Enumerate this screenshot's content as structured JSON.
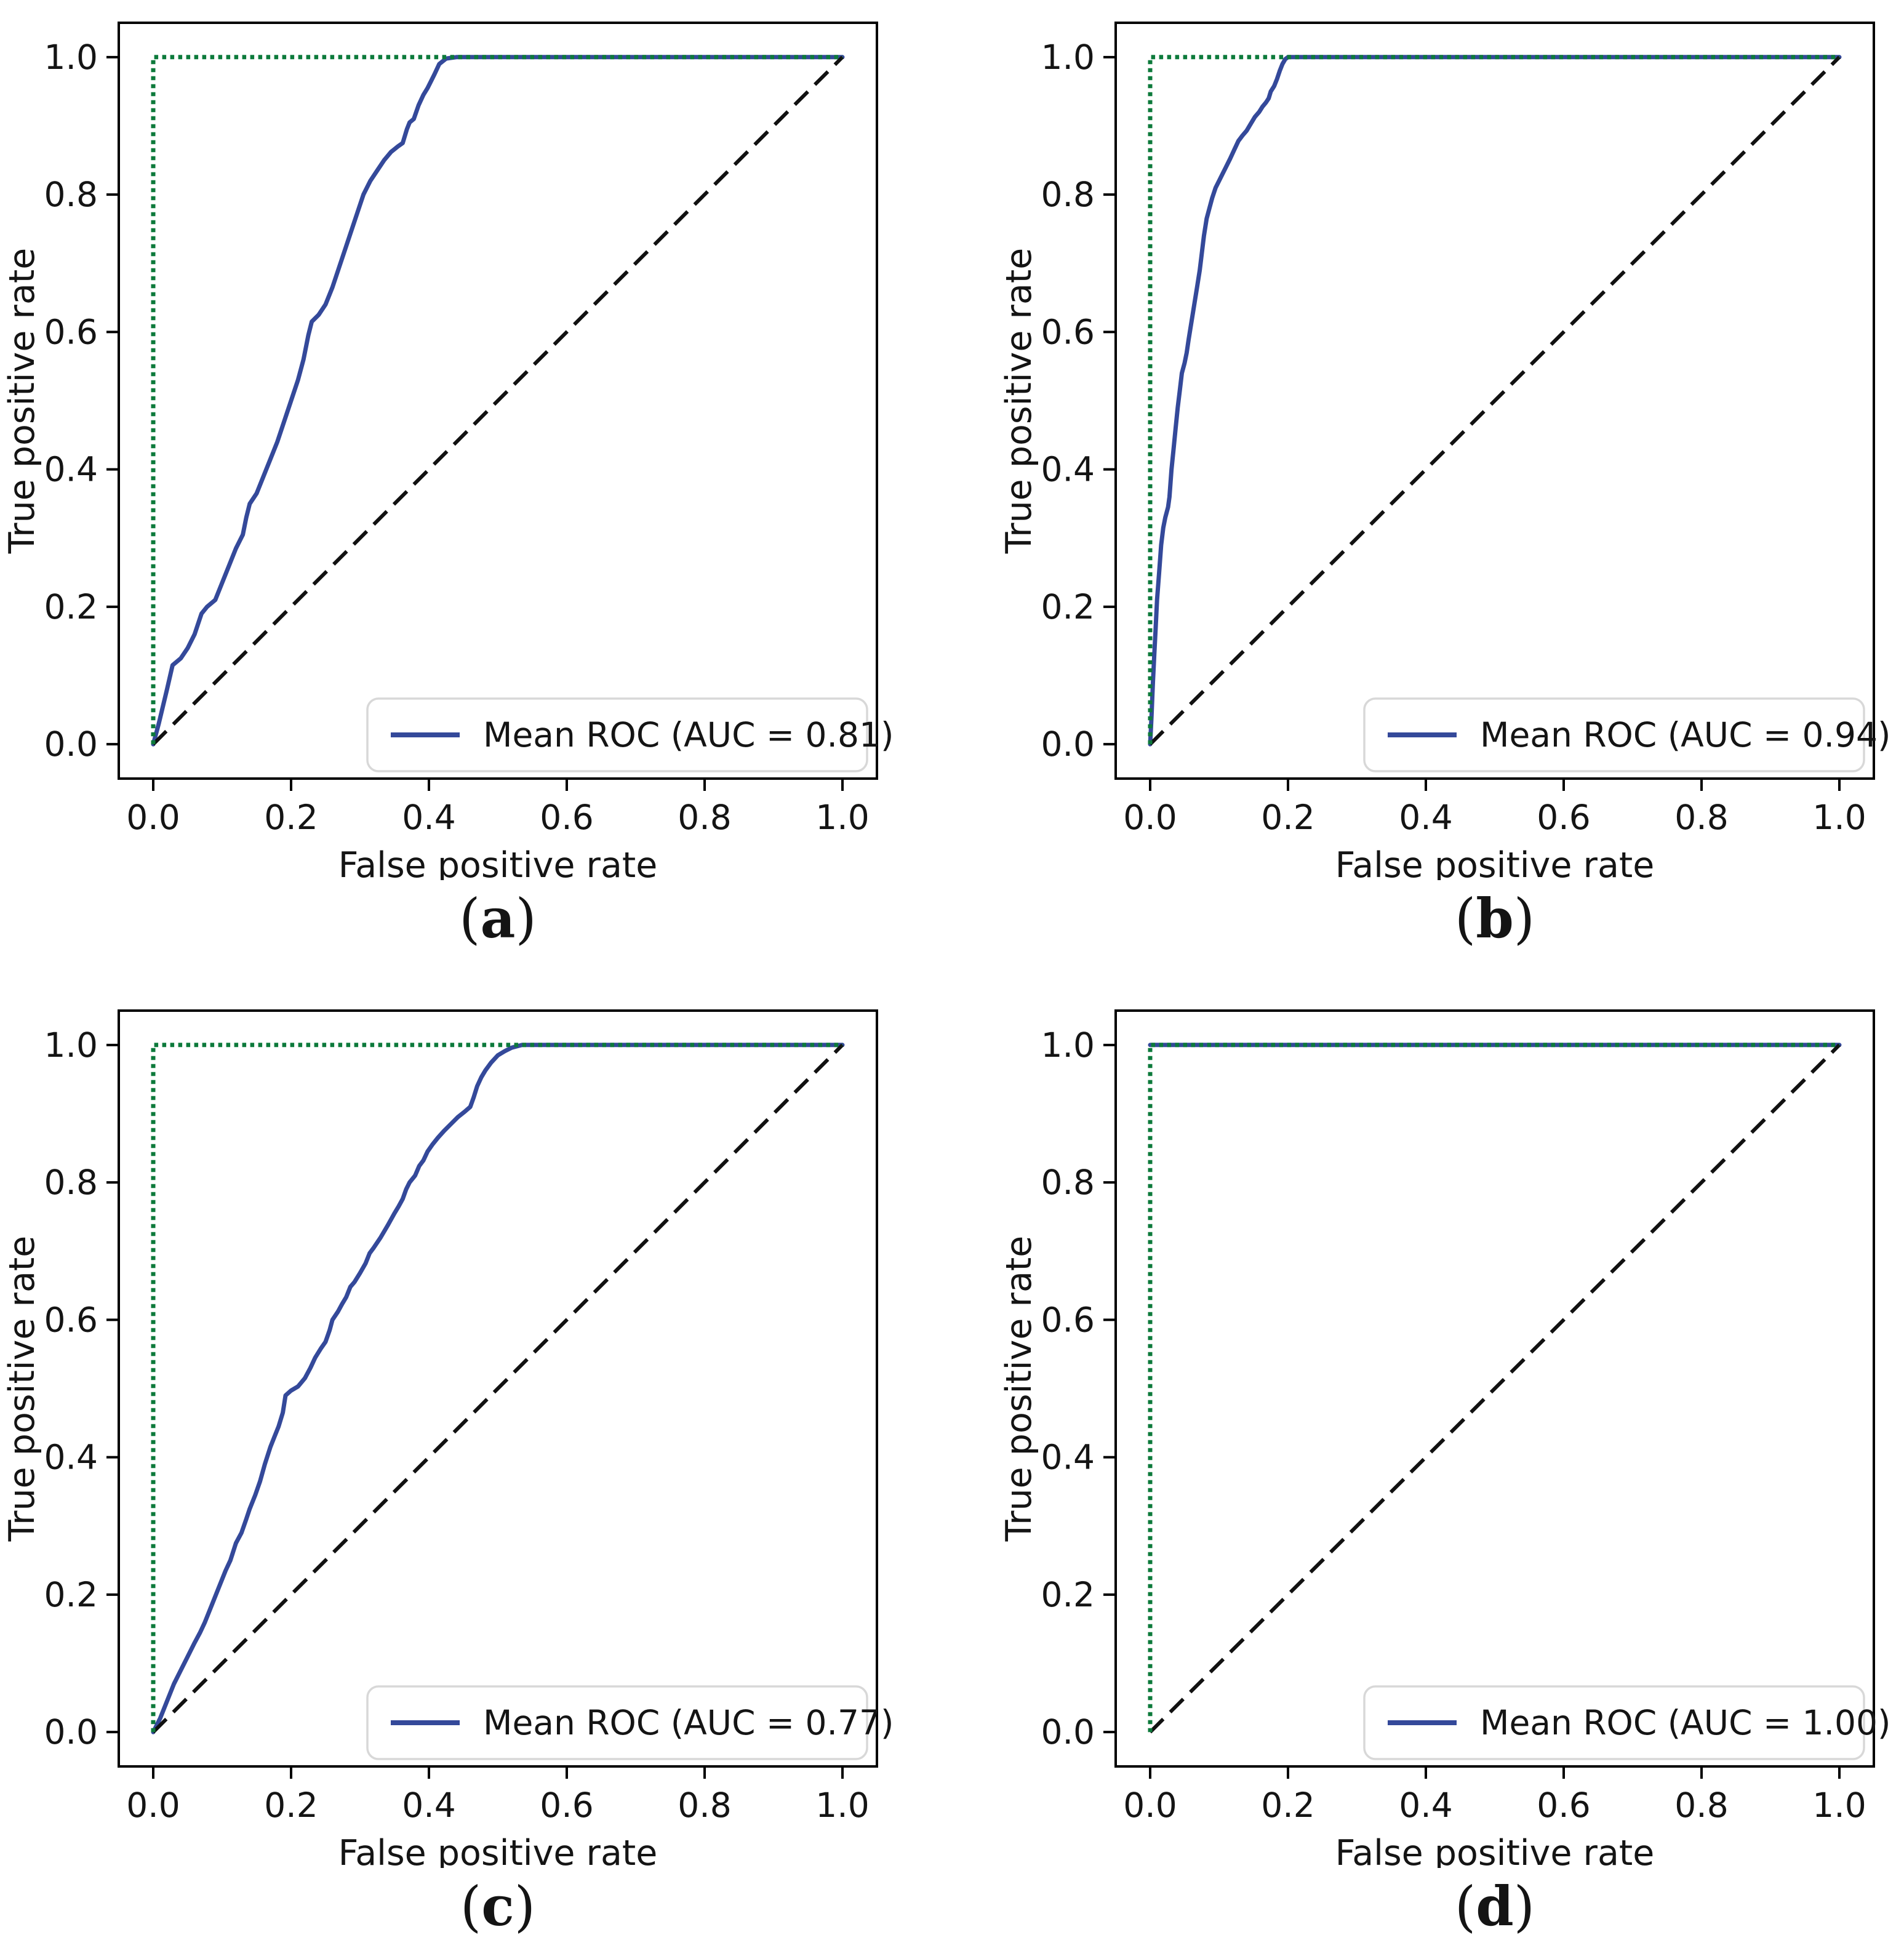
{
  "figure": {
    "background": "#ffffff",
    "text_color": "#141414",
    "spine_color": "#000000",
    "legend_border_color": "#d8d8d8",
    "legend_background": "#ffffff"
  },
  "captions": [
    {
      "pre": "(",
      "label": "a",
      "post": ")"
    },
    {
      "pre": "(",
      "label": "b",
      "post": ")"
    },
    {
      "pre": "(",
      "label": "c",
      "post": ")"
    },
    {
      "pre": "(",
      "label": "d",
      "post": ")"
    }
  ],
  "chart_data": [
    {
      "type": "line",
      "title": "",
      "xlabel": "False positive rate",
      "ylabel": "True positive rate",
      "xlim": [
        -0.05,
        1.05
      ],
      "ylim": [
        -0.05,
        1.05
      ],
      "x_tick_labels": [
        "0.0",
        "0.2",
        "0.4",
        "0.6",
        "0.8",
        "1.0"
      ],
      "y_tick_labels": [
        "0.0",
        "0.2",
        "0.4",
        "0.6",
        "0.8",
        "1.0"
      ],
      "grid": false,
      "legend": {
        "label": "Mean ROC (AUC = 0.81)",
        "position": "lower right"
      },
      "series": [
        {
          "name": "mean-roc",
          "color": "#34499a",
          "style": "solid",
          "points": [
            [
              0,
              0
            ],
            [
              0.008,
              0.03
            ],
            [
              0.02,
              0.08
            ],
            [
              0.028,
              0.115
            ],
            [
              0.04,
              0.125
            ],
            [
              0.05,
              0.14
            ],
            [
              0.06,
              0.16
            ],
            [
              0.07,
              0.19
            ],
            [
              0.078,
              0.2
            ],
            [
              0.09,
              0.21
            ],
            [
              0.1,
              0.235
            ],
            [
              0.11,
              0.26
            ],
            [
              0.12,
              0.285
            ],
            [
              0.13,
              0.305
            ],
            [
              0.135,
              0.33
            ],
            [
              0.14,
              0.35
            ],
            [
              0.15,
              0.365
            ],
            [
              0.16,
              0.39
            ],
            [
              0.17,
              0.415
            ],
            [
              0.18,
              0.44
            ],
            [
              0.19,
              0.47
            ],
            [
              0.2,
              0.5
            ],
            [
              0.21,
              0.53
            ],
            [
              0.218,
              0.56
            ],
            [
              0.225,
              0.595
            ],
            [
              0.23,
              0.615
            ],
            [
              0.24,
              0.625
            ],
            [
              0.25,
              0.64
            ],
            [
              0.26,
              0.665
            ],
            [
              0.27,
              0.695
            ],
            [
              0.28,
              0.725
            ],
            [
              0.29,
              0.755
            ],
            [
              0.3,
              0.785
            ],
            [
              0.305,
              0.8
            ],
            [
              0.315,
              0.82
            ],
            [
              0.325,
              0.835
            ],
            [
              0.335,
              0.85
            ],
            [
              0.345,
              0.862
            ],
            [
              0.355,
              0.87
            ],
            [
              0.362,
              0.875
            ],
            [
              0.368,
              0.895
            ],
            [
              0.372,
              0.905
            ],
            [
              0.378,
              0.91
            ],
            [
              0.385,
              0.93
            ],
            [
              0.392,
              0.945
            ],
            [
              0.398,
              0.955
            ],
            [
              0.403,
              0.965
            ],
            [
              0.408,
              0.975
            ],
            [
              0.415,
              0.99
            ],
            [
              0.425,
              0.998
            ],
            [
              0.44,
              1
            ],
            [
              1,
              1
            ]
          ]
        },
        {
          "name": "chance-diagonal",
          "color": "#111111",
          "style": "dashed",
          "points": [
            [
              0,
              0
            ],
            [
              1,
              1
            ]
          ]
        },
        {
          "name": "perfect-classifier",
          "color": "#0d7a3b",
          "style": "dotted",
          "points": [
            [
              0,
              0
            ],
            [
              0,
              1
            ],
            [
              1,
              1
            ]
          ]
        }
      ]
    },
    {
      "type": "line",
      "title": "",
      "xlabel": "False positive rate",
      "ylabel": "True positive rate",
      "xlim": [
        -0.05,
        1.05
      ],
      "ylim": [
        -0.05,
        1.05
      ],
      "x_tick_labels": [
        "0.0",
        "0.2",
        "0.4",
        "0.6",
        "0.8",
        "1.0"
      ],
      "y_tick_labels": [
        "0.0",
        "0.2",
        "0.4",
        "0.6",
        "0.8",
        "1.0"
      ],
      "grid": false,
      "legend": {
        "label": "Mean ROC (AUC = 0.94)",
        "position": "lower right"
      },
      "series": [
        {
          "name": "mean-roc",
          "color": "#34499a",
          "style": "solid",
          "points": [
            [
              0,
              0
            ],
            [
              0.002,
              0.04
            ],
            [
              0.004,
              0.09
            ],
            [
              0.006,
              0.13
            ],
            [
              0.008,
              0.17
            ],
            [
              0.01,
              0.21
            ],
            [
              0.013,
              0.25
            ],
            [
              0.016,
              0.29
            ],
            [
              0.019,
              0.315
            ],
            [
              0.022,
              0.33
            ],
            [
              0.026,
              0.345
            ],
            [
              0.028,
              0.36
            ],
            [
              0.031,
              0.4
            ],
            [
              0.034,
              0.43
            ],
            [
              0.037,
              0.46
            ],
            [
              0.04,
              0.49
            ],
            [
              0.043,
              0.515
            ],
            [
              0.046,
              0.54
            ],
            [
              0.05,
              0.555
            ],
            [
              0.053,
              0.57
            ],
            [
              0.056,
              0.59
            ],
            [
              0.06,
              0.615
            ],
            [
              0.064,
              0.64
            ],
            [
              0.068,
              0.665
            ],
            [
              0.072,
              0.69
            ],
            [
              0.075,
              0.715
            ],
            [
              0.078,
              0.74
            ],
            [
              0.082,
              0.765
            ],
            [
              0.086,
              0.78
            ],
            [
              0.09,
              0.795
            ],
            [
              0.095,
              0.81
            ],
            [
              0.1,
              0.82
            ],
            [
              0.105,
              0.83
            ],
            [
              0.11,
              0.84
            ],
            [
              0.116,
              0.852
            ],
            [
              0.122,
              0.865
            ],
            [
              0.128,
              0.878
            ],
            [
              0.134,
              0.886
            ],
            [
              0.14,
              0.893
            ],
            [
              0.146,
              0.903
            ],
            [
              0.152,
              0.913
            ],
            [
              0.158,
              0.92
            ],
            [
              0.163,
              0.928
            ],
            [
              0.168,
              0.934
            ],
            [
              0.172,
              0.94
            ],
            [
              0.175,
              0.95
            ],
            [
              0.18,
              0.958
            ],
            [
              0.184,
              0.968
            ],
            [
              0.188,
              0.98
            ],
            [
              0.192,
              0.99
            ],
            [
              0.196,
              0.997
            ],
            [
              0.2,
              1
            ],
            [
              1,
              1
            ]
          ]
        },
        {
          "name": "chance-diagonal",
          "color": "#111111",
          "style": "dashed",
          "points": [
            [
              0,
              0
            ],
            [
              1,
              1
            ]
          ]
        },
        {
          "name": "perfect-classifier",
          "color": "#0d7a3b",
          "style": "dotted",
          "points": [
            [
              0,
              0
            ],
            [
              0,
              1
            ],
            [
              1,
              1
            ]
          ]
        }
      ]
    },
    {
      "type": "line",
      "title": "",
      "xlabel": "False positive rate",
      "ylabel": "True positive rate",
      "xlim": [
        -0.05,
        1.05
      ],
      "ylim": [
        -0.05,
        1.05
      ],
      "x_tick_labels": [
        "0.0",
        "0.2",
        "0.4",
        "0.6",
        "0.8",
        "1.0"
      ],
      "y_tick_labels": [
        "0.0",
        "0.2",
        "0.4",
        "0.6",
        "0.8",
        "1.0"
      ],
      "grid": false,
      "legend": {
        "label": "Mean ROC (AUC = 0.77)",
        "position": "lower right"
      },
      "series": [
        {
          "name": "mean-roc",
          "color": "#34499a",
          "style": "solid",
          "points": [
            [
              0,
              0
            ],
            [
              0.01,
              0.02
            ],
            [
              0.02,
              0.045
            ],
            [
              0.03,
              0.07
            ],
            [
              0.04,
              0.09
            ],
            [
              0.05,
              0.11
            ],
            [
              0.06,
              0.13
            ],
            [
              0.068,
              0.145
            ],
            [
              0.075,
              0.16
            ],
            [
              0.085,
              0.185
            ],
            [
              0.095,
              0.21
            ],
            [
              0.105,
              0.235
            ],
            [
              0.112,
              0.25
            ],
            [
              0.12,
              0.275
            ],
            [
              0.128,
              0.29
            ],
            [
              0.135,
              0.31
            ],
            [
              0.14,
              0.325
            ],
            [
              0.148,
              0.345
            ],
            [
              0.155,
              0.365
            ],
            [
              0.162,
              0.39
            ],
            [
              0.17,
              0.415
            ],
            [
              0.176,
              0.43
            ],
            [
              0.182,
              0.445
            ],
            [
              0.188,
              0.465
            ],
            [
              0.192,
              0.49
            ],
            [
              0.2,
              0.497
            ],
            [
              0.21,
              0.503
            ],
            [
              0.22,
              0.515
            ],
            [
              0.228,
              0.53
            ],
            [
              0.235,
              0.545
            ],
            [
              0.243,
              0.558
            ],
            [
              0.25,
              0.568
            ],
            [
              0.256,
              0.585
            ],
            [
              0.26,
              0.6
            ],
            [
              0.268,
              0.612
            ],
            [
              0.274,
              0.623
            ],
            [
              0.28,
              0.633
            ],
            [
              0.286,
              0.648
            ],
            [
              0.292,
              0.655
            ],
            [
              0.3,
              0.668
            ],
            [
              0.308,
              0.682
            ],
            [
              0.314,
              0.697
            ],
            [
              0.32,
              0.705
            ],
            [
              0.33,
              0.72
            ],
            [
              0.34,
              0.737
            ],
            [
              0.35,
              0.755
            ],
            [
              0.356,
              0.765
            ],
            [
              0.362,
              0.776
            ],
            [
              0.367,
              0.79
            ],
            [
              0.372,
              0.8
            ],
            [
              0.38,
              0.81
            ],
            [
              0.386,
              0.824
            ],
            [
              0.392,
              0.832
            ],
            [
              0.398,
              0.845
            ],
            [
              0.405,
              0.855
            ],
            [
              0.413,
              0.865
            ],
            [
              0.422,
              0.875
            ],
            [
              0.432,
              0.885
            ],
            [
              0.442,
              0.895
            ],
            [
              0.452,
              0.903
            ],
            [
              0.46,
              0.91
            ],
            [
              0.465,
              0.924
            ],
            [
              0.47,
              0.94
            ],
            [
              0.476,
              0.953
            ],
            [
              0.482,
              0.963
            ],
            [
              0.49,
              0.974
            ],
            [
              0.5,
              0.985
            ],
            [
              0.51,
              0.991
            ],
            [
              0.52,
              0.996
            ],
            [
              0.535,
              1
            ],
            [
              1,
              1
            ]
          ]
        },
        {
          "name": "chance-diagonal",
          "color": "#111111",
          "style": "dashed",
          "points": [
            [
              0,
              0
            ],
            [
              1,
              1
            ]
          ]
        },
        {
          "name": "perfect-classifier",
          "color": "#0d7a3b",
          "style": "dotted",
          "points": [
            [
              0,
              0
            ],
            [
              0,
              1
            ],
            [
              1,
              1
            ]
          ]
        }
      ]
    },
    {
      "type": "line",
      "title": "",
      "xlabel": "False positive rate",
      "ylabel": "True positive rate",
      "xlim": [
        -0.05,
        1.05
      ],
      "ylim": [
        -0.05,
        1.05
      ],
      "x_tick_labels": [
        "0.0",
        "0.2",
        "0.4",
        "0.6",
        "0.8",
        "1.0"
      ],
      "y_tick_labels": [
        "0.0",
        "0.2",
        "0.4",
        "0.6",
        "0.8",
        "1.0"
      ],
      "grid": false,
      "legend": {
        "label": "Mean ROC (AUC = 1.00)",
        "position": "lower right"
      },
      "series": [
        {
          "name": "mean-roc",
          "color": "#34499a",
          "style": "solid",
          "points": [
            [
              0,
              1
            ],
            [
              1,
              1
            ]
          ]
        },
        {
          "name": "chance-diagonal",
          "color": "#111111",
          "style": "dashed",
          "points": [
            [
              0,
              0
            ],
            [
              1,
              1
            ]
          ]
        },
        {
          "name": "perfect-classifier",
          "color": "#0d7a3b",
          "style": "dotted",
          "points": [
            [
              0,
              0
            ],
            [
              0,
              1
            ],
            [
              1,
              1
            ]
          ]
        }
      ]
    }
  ]
}
